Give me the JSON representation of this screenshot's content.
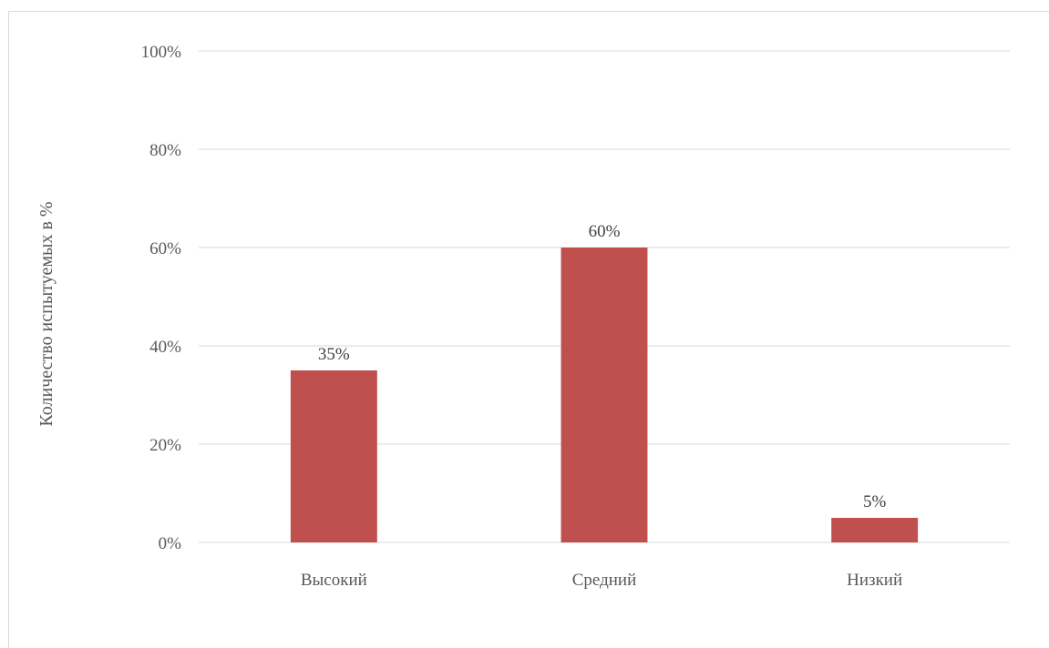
{
  "chart_data": {
    "type": "bar",
    "categories": [
      "Высокий",
      "Средний",
      "Низкий"
    ],
    "values": [
      35,
      60,
      5
    ],
    "data_labels": [
      "35%",
      "60%",
      "5%"
    ],
    "title": "",
    "xlabel": "",
    "ylabel": "Количество испытуемых в %",
    "ylim": [
      0,
      100
    ],
    "yticks": [
      0,
      20,
      40,
      60,
      80,
      100
    ],
    "ytick_labels": [
      "0%",
      "20%",
      "40%",
      "60%",
      "80%",
      "100%"
    ],
    "grid": true,
    "legend": "none",
    "colors": {
      "bar": "#c0504d",
      "grid": "#d9d9d9"
    }
  }
}
